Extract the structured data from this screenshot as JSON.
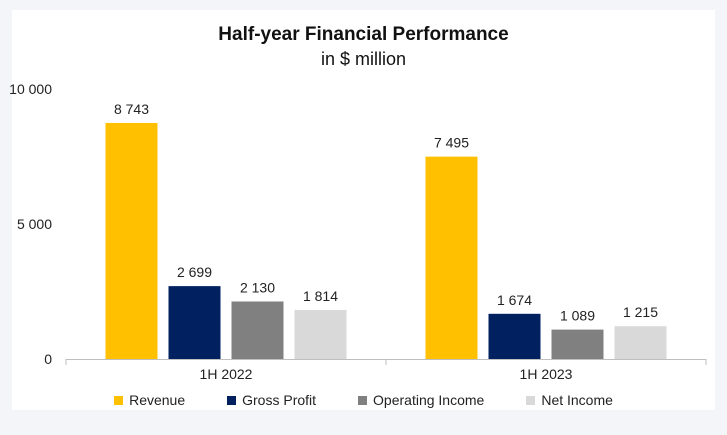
{
  "chart_data": {
    "type": "bar",
    "title": "Half-year Financial Performance",
    "subtitle": "in $ million",
    "categories": [
      "1H 2022",
      "1H 2023"
    ],
    "series": [
      {
        "name": "Revenue",
        "values": [
          8743,
          7495
        ],
        "labels": [
          "8 743",
          "7 495"
        ],
        "color": "#FFC000"
      },
      {
        "name": "Gross Profit",
        "values": [
          2699,
          1674
        ],
        "labels": [
          "2 699",
          "1 674"
        ],
        "color": "#002060"
      },
      {
        "name": "Operating Income",
        "values": [
          2130,
          1089
        ],
        "labels": [
          "2 130",
          "1 089"
        ],
        "color": "#808080"
      },
      {
        "name": "Net Income",
        "values": [
          1814,
          1215
        ],
        "labels": [
          "1 814",
          "1 215"
        ],
        "color": "#D9D9D9"
      }
    ],
    "ylim": [
      0,
      10000
    ],
    "yticks": [
      0,
      5000,
      10000
    ],
    "ytick_labels": [
      "0",
      "5 000",
      "10 000"
    ],
    "grid": false,
    "legend": "bottom"
  }
}
